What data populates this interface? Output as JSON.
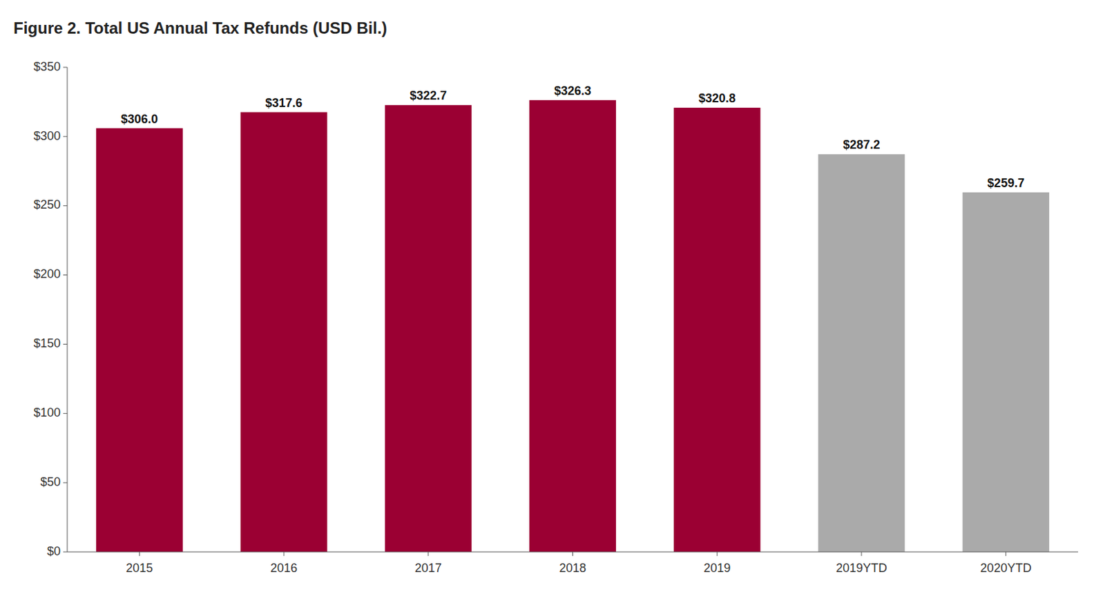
{
  "chart_data": {
    "type": "bar",
    "title": "Figure 2. Total US Annual Tax Refunds (USD Bil.)",
    "categories": [
      "2015",
      "2016",
      "2017",
      "2018",
      "2019",
      "2019YTD",
      "2020YTD"
    ],
    "values": [
      306.0,
      317.6,
      322.7,
      326.3,
      320.8,
      287.2,
      259.7
    ],
    "value_labels": [
      "$306.0",
      "$317.6",
      "$322.7",
      "$326.3",
      "$320.8",
      "$287.2",
      "$259.7"
    ],
    "colors": [
      "#9B0033",
      "#9B0033",
      "#9B0033",
      "#9B0033",
      "#9B0033",
      "#AAAAAA",
      "#AAAAAA"
    ],
    "ylim": [
      0,
      350
    ],
    "yticks": [
      {
        "value": 0,
        "label": "$0"
      },
      {
        "value": 50,
        "label": "$50"
      },
      {
        "value": 100,
        "label": "$100"
      },
      {
        "value": 150,
        "label": "$150"
      },
      {
        "value": 200,
        "label": "$200"
      },
      {
        "value": 250,
        "label": "$250"
      },
      {
        "value": 300,
        "label": "$300"
      },
      {
        "value": 350,
        "label": "$350"
      }
    ],
    "data_labels": true,
    "grid": false
  }
}
